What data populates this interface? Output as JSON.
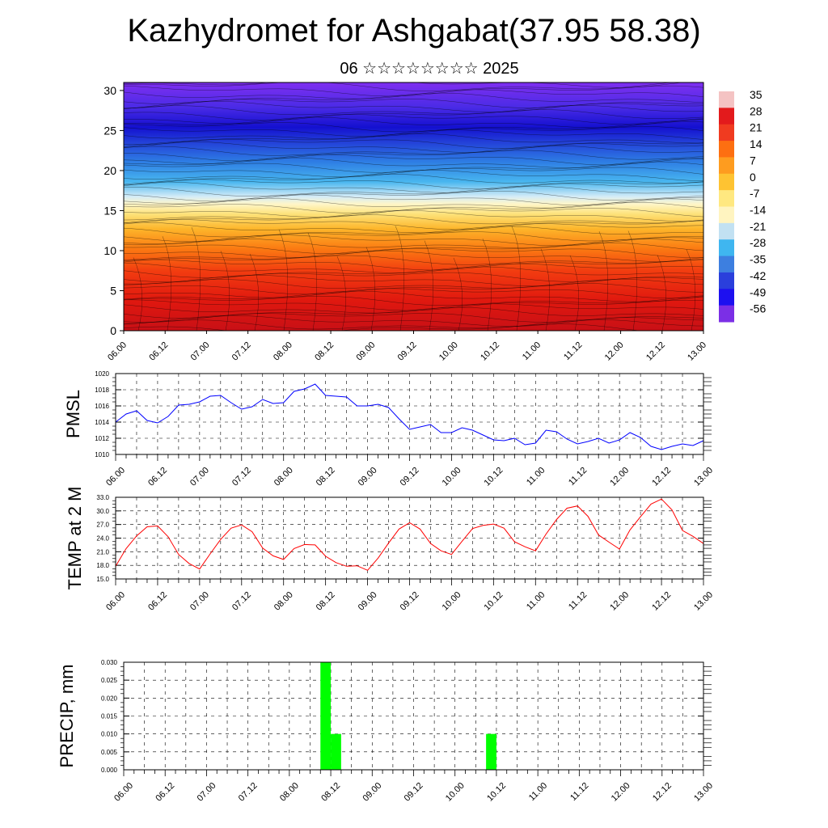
{
  "title": "Kazhydromet for Ashgabat(37.95 58.38)",
  "subtitle": "06 ☆☆☆☆☆☆☆☆ 2025",
  "time_ticks": [
    "06.00",
    "06.12",
    "07.00",
    "07.12",
    "08.00",
    "08.12",
    "09.00",
    "09.12",
    "10.00",
    "10.12",
    "11.00",
    "11.12",
    "12.00",
    "12.12",
    "13.00"
  ],
  "chart_data": [
    {
      "type": "heatmap",
      "name": "temperature-wind-cross-section",
      "y_ticks": [
        "0",
        "5",
        "10",
        "15",
        "20",
        "25",
        "30"
      ],
      "ylim": [
        0,
        31
      ],
      "colorbar": {
        "labels": [
          "35",
          "28",
          "21",
          "14",
          "7",
          "0",
          "-7",
          "-14",
          "-21",
          "-28",
          "-35",
          "-42",
          "-49",
          "-56"
        ],
        "colors": [
          "#f4c3c3",
          "#e31a1c",
          "#f03b20",
          "#fd6f11",
          "#fe9c1f",
          "#fec332",
          "#ffe880",
          "#fff4c0",
          "#c2e1f2",
          "#3fb6f0",
          "#3d7fe0",
          "#2a3fdc",
          "#1d10f0",
          "#7b2fe6"
        ]
      }
    },
    {
      "type": "line",
      "ylabel": "PMSL",
      "ylim": [
        1010,
        1020
      ],
      "y_ticks": [
        "1010",
        "1012",
        "1014",
        "1016",
        "1018",
        "1020"
      ],
      "color": "#0000ff",
      "x_hours": [
        0,
        3,
        6,
        9,
        12,
        15,
        18,
        21,
        24,
        27,
        30,
        33,
        36,
        39,
        42,
        45,
        48,
        51,
        54,
        57,
        60,
        63,
        66,
        69,
        72,
        75,
        78,
        81,
        84,
        87,
        90,
        93,
        96,
        99,
        102,
        105,
        108,
        111,
        114,
        117,
        120,
        123,
        126,
        129,
        132,
        135,
        138,
        141,
        144,
        147,
        150,
        153,
        156,
        159,
        162,
        165,
        168
      ],
      "values": [
        1014.0,
        1015.0,
        1015.4,
        1014.2,
        1013.9,
        1014.7,
        1016.1,
        1016.2,
        1016.5,
        1017.2,
        1017.3,
        1016.4,
        1015.6,
        1015.9,
        1016.8,
        1016.3,
        1016.4,
        1017.8,
        1018.1,
        1018.7,
        1017.3,
        1017.2,
        1017.1,
        1016.0,
        1016.0,
        1016.2,
        1015.8,
        1014.4,
        1013.1,
        1013.4,
        1013.7,
        1012.7,
        1012.7,
        1013.3,
        1013.0,
        1012.4,
        1011.8,
        1011.7,
        1012.0,
        1011.2,
        1011.4,
        1013.0,
        1012.8,
        1011.9,
        1011.3,
        1011.6,
        1012.0,
        1011.4,
        1011.8,
        1012.7,
        1012.1,
        1011.0,
        1010.6,
        1011.0,
        1011.3,
        1011.1,
        1011.7
      ]
    },
    {
      "type": "line",
      "ylabel": "TEMP at 2 M",
      "ylim": [
        15.0,
        33.0
      ],
      "y_ticks": [
        "15.0",
        "18.0",
        "21.0",
        "24.0",
        "27.0",
        "30.0",
        "33.0"
      ],
      "color": "#ff0000",
      "x_hours": [
        0,
        3,
        6,
        9,
        12,
        15,
        18,
        21,
        24,
        27,
        30,
        33,
        36,
        39,
        42,
        45,
        48,
        51,
        54,
        57,
        60,
        63,
        66,
        69,
        72,
        75,
        78,
        81,
        84,
        87,
        90,
        93,
        96,
        99,
        102,
        105,
        108,
        111,
        114,
        117,
        120,
        123,
        126,
        129,
        132,
        135,
        138,
        141,
        144,
        147,
        150,
        153,
        156,
        159,
        162,
        165,
        168
      ],
      "values": [
        17.8,
        21.7,
        24.5,
        26.5,
        26.7,
        24.3,
        20.4,
        18.4,
        17.2,
        20.5,
        23.7,
        26.2,
        26.9,
        25.4,
        21.8,
        20.1,
        19.3,
        21.7,
        22.6,
        22.5,
        20.0,
        18.6,
        17.8,
        17.9,
        16.9,
        19.6,
        22.9,
        26.0,
        27.4,
        26.0,
        22.8,
        21.2,
        20.4,
        23.3,
        26.1,
        26.8,
        27.1,
        26.2,
        23.2,
        22.1,
        21.2,
        24.9,
        28.1,
        30.6,
        31.1,
        28.8,
        24.7,
        23.1,
        21.6,
        25.8,
        28.7,
        31.5,
        32.6,
        30.2,
        25.7,
        24.4,
        22.8
      ]
    },
    {
      "type": "bar",
      "ylabel": "PRECIP, mm",
      "ylim": [
        0.0,
        0.03
      ],
      "y_ticks": [
        "0.000",
        "0.005",
        "0.010",
        "0.015",
        "0.020",
        "0.025",
        "0.030"
      ],
      "color": "#00ff00",
      "bars": [
        {
          "start_hour": 57,
          "end_hour": 60,
          "value": 0.03
        },
        {
          "start_hour": 60,
          "end_hour": 63,
          "value": 0.01
        },
        {
          "start_hour": 105,
          "end_hour": 108,
          "value": 0.01
        }
      ]
    }
  ]
}
